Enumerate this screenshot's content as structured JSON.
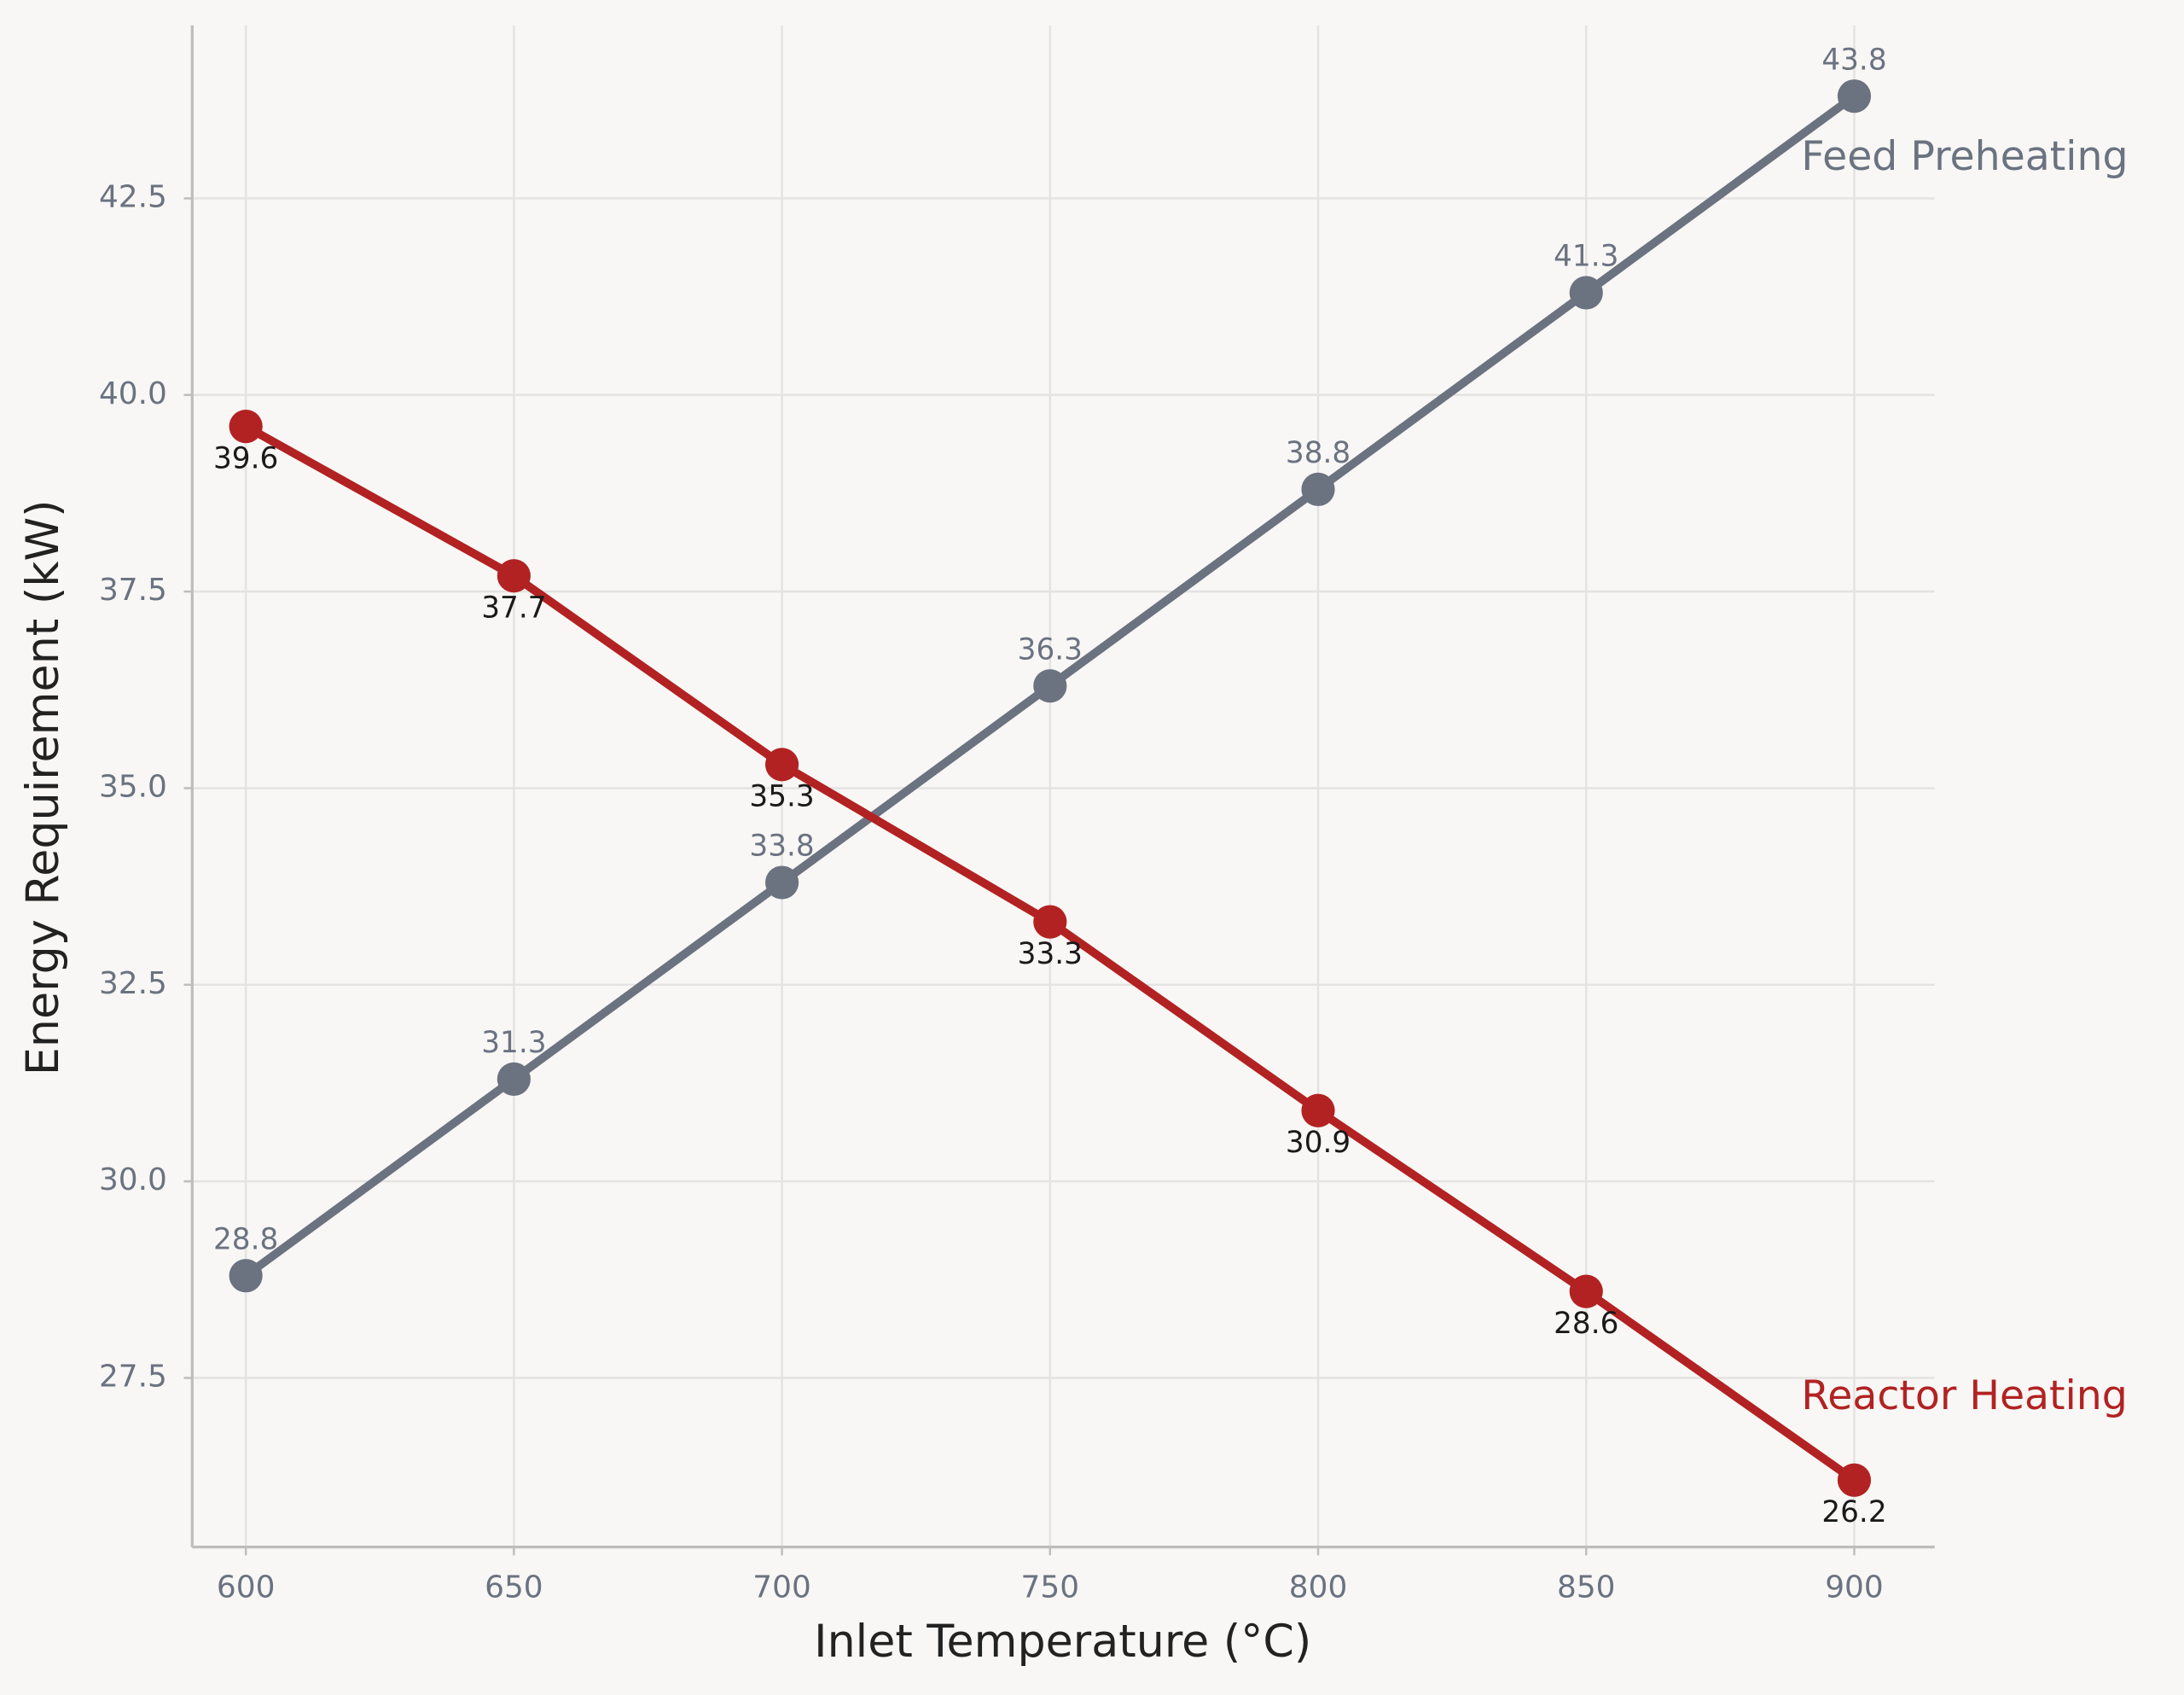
{
  "chart_data": {
    "type": "line",
    "x_label": "Inlet Temperature (°C)",
    "y_label": "Energy Requirement (kW)",
    "x": [
      600,
      650,
      700,
      750,
      800,
      850,
      900
    ],
    "series": [
      {
        "name": "Feed Preheating",
        "color": "#6b7280",
        "values": [
          28.8,
          31.3,
          33.8,
          36.3,
          38.8,
          41.3,
          43.8
        ]
      },
      {
        "name": "Reactor Heating",
        "color": "#b22222",
        "values": [
          39.6,
          37.7,
          35.3,
          33.3,
          30.9,
          28.6,
          26.2
        ]
      }
    ],
    "xlim": [
      590,
      915
    ],
    "ylim": [
      25.35,
      44.7
    ],
    "xticks": [
      600,
      650,
      700,
      750,
      800,
      850,
      900
    ],
    "yticks": [
      27.5,
      {
        "value": 30,
        "label": "30.0"
      },
      32.5,
      {
        "value": 35,
        "label": "35.0"
      },
      37.5,
      {
        "value": 40,
        "label": "40.0"
      },
      42.5
    ],
    "grid": true
  }
}
